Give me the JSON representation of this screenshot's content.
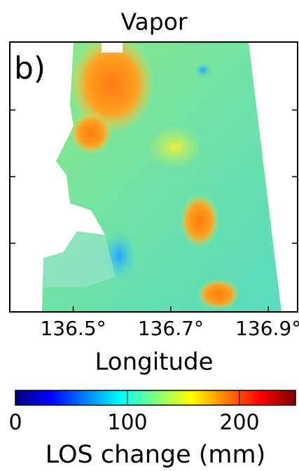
{
  "chart_data": {
    "type": "map",
    "title": "Vapor",
    "panel_label": "b)",
    "xlabel": "Longitude",
    "xlim": [
      136.37,
      136.96
    ],
    "xticks": [
      {
        "value": 136.5,
        "label": "136.5°"
      },
      {
        "value": 136.7,
        "label": "136.7°"
      },
      {
        "value": 136.9,
        "label": "136.9°"
      }
    ],
    "colormap": "jet",
    "colorbar": {
      "label": "LOS change (mm)",
      "lim": [
        0,
        250
      ],
      "ticks": [
        0,
        100,
        200
      ]
    }
  }
}
